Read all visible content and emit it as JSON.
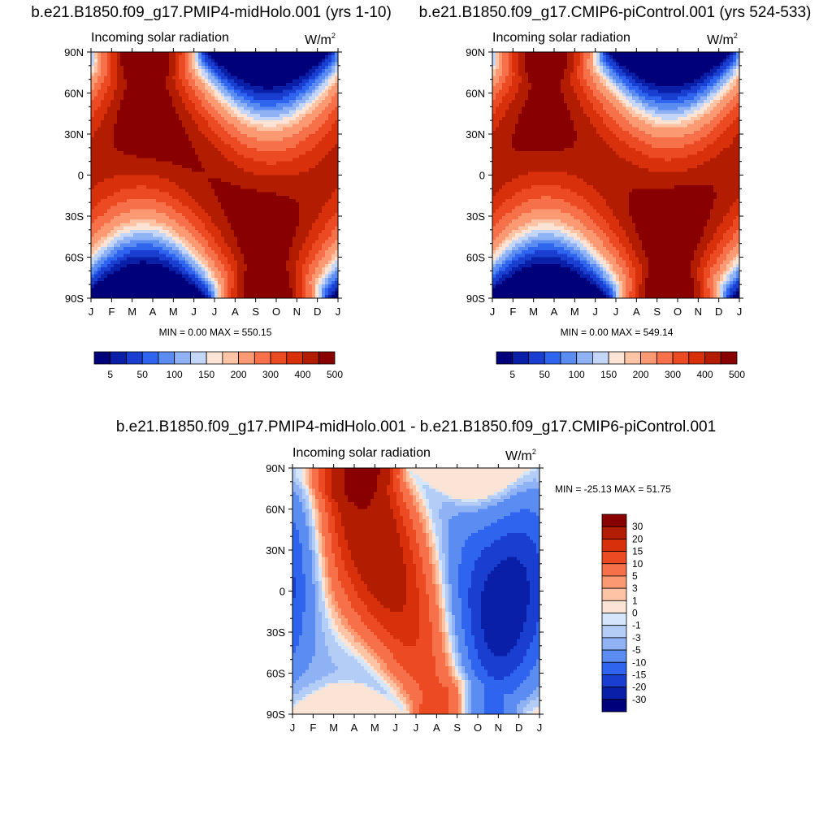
{
  "chart_data": [
    {
      "type": "heatmap",
      "title": "b.e21.B1850.f09_g17.PMIP4-midHolo.001 (yrs 1-10)",
      "subtitle": "Incoming solar radiation",
      "units": "W/m",
      "units_sup": "2",
      "x_ticks": [
        "J",
        "F",
        "M",
        "A",
        "M",
        "J",
        "J",
        "A",
        "S",
        "O",
        "N",
        "D",
        "J"
      ],
      "y_ticks": [
        "90N",
        "60N",
        "30N",
        "0",
        "30S",
        "60S",
        "90S"
      ],
      "stats_text": "MIN =   0.00 MAX = 550.15",
      "min": 0.0,
      "max": 550.15,
      "scale": "absolute",
      "colorbar_labels": [
        "5",
        "50",
        "100",
        "150",
        "200",
        "300",
        "400",
        "500"
      ]
    },
    {
      "type": "heatmap",
      "title": "b.e21.B1850.f09_g17.CMIP6-piControl.001 (yrs 524-533)",
      "subtitle": "Incoming solar radiation",
      "units": "W/m",
      "units_sup": "2",
      "x_ticks": [
        "J",
        "F",
        "M",
        "A",
        "M",
        "J",
        "J",
        "A",
        "S",
        "O",
        "N",
        "D",
        "J"
      ],
      "y_ticks": [
        "90N",
        "60N",
        "30N",
        "0",
        "30S",
        "60S",
        "90S"
      ],
      "stats_text": "MIN =   0.00 MAX = 549.14",
      "min": 0.0,
      "max": 549.14,
      "scale": "absolute",
      "colorbar_labels": [
        "5",
        "50",
        "100",
        "150",
        "200",
        "300",
        "400",
        "500"
      ]
    },
    {
      "type": "heatmap",
      "title": "b.e21.B1850.f09_g17.PMIP4-midHolo.001 - b.e21.B1850.f09_g17.CMIP6-piControl.001",
      "subtitle": "Incoming solar radiation",
      "units": "W/m",
      "units_sup": "2",
      "x_ticks": [
        "J",
        "F",
        "M",
        "A",
        "M",
        "J",
        "J",
        "A",
        "S",
        "O",
        "N",
        "D",
        "J"
      ],
      "y_ticks": [
        "90N",
        "60N",
        "30N",
        "0",
        "30S",
        "60S",
        "90S"
      ],
      "stats_text": "MIN = -25.13 MAX =  51.75",
      "min": -25.13,
      "max": 51.75,
      "scale": "difference",
      "colorbar_labels": [
        "30",
        "20",
        "15",
        "10",
        "5",
        "3",
        "1",
        "0",
        "-1",
        "-3",
        "-5",
        "-10",
        "-15",
        "-20",
        "-30"
      ]
    }
  ],
  "palettes": {
    "absolute": [
      "#00007a",
      "#0a1fa8",
      "#1a3fd0",
      "#2f64ee",
      "#5a8cf2",
      "#8fb2f5",
      "#c3d6f7",
      "#fbe4d6",
      "#fcc3a5",
      "#fb9a72",
      "#f6704a",
      "#eb4a22",
      "#d8300a",
      "#b21c00",
      "#880000"
    ],
    "difference": [
      "#880000",
      "#b21c00",
      "#d8300a",
      "#eb4a22",
      "#f6704a",
      "#fb9a72",
      "#fcc3a5",
      "#fbe4d6",
      "#d6e6fa",
      "#b3cdf7",
      "#8fb2f5",
      "#5a8cf2",
      "#2f64ee",
      "#1a3fd0",
      "#0a1fa8",
      "#00007a"
    ]
  }
}
